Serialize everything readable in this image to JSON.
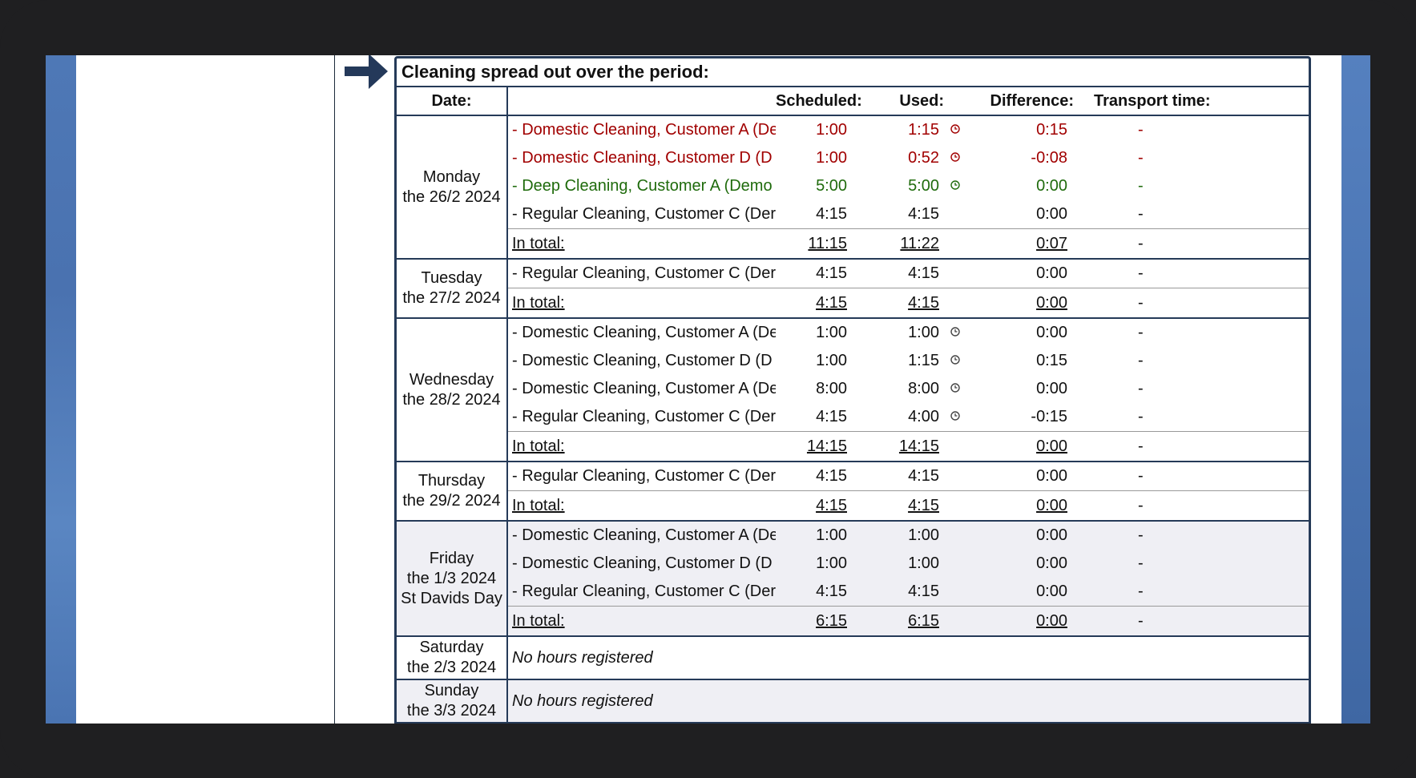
{
  "report": {
    "title": "Cleaning spread out over the period:",
    "headers": {
      "date": "Date:",
      "scheduled": "Scheduled:",
      "used": "Used:",
      "difference": "Difference:",
      "transport": "Transport time:"
    },
    "total_label": "In total:",
    "colors": {
      "red": "#a10000",
      "green": "#1f6b0c",
      "border": "#253a58",
      "shade": "#efeff4"
    },
    "days": [
      {
        "weekday": "Monday",
        "date": "the 26/2 2024",
        "tasks": [
          {
            "name": "Domestic Cleaning, Customer A (De",
            "scheduled": "1:00",
            "used": "1:15",
            "difference": "0:15",
            "transport": "-",
            "status": "red",
            "clock": true
          },
          {
            "name": "Domestic Cleaning, Customer D (D",
            "scheduled": "1:00",
            "used": "0:52",
            "difference": "-0:08",
            "transport": "-",
            "status": "red",
            "clock": true
          },
          {
            "name": "Deep Cleaning, Customer A (Demo",
            "scheduled": "5:00",
            "used": "5:00",
            "difference": "0:00",
            "transport": "-",
            "status": "green",
            "clock": true
          },
          {
            "name": "Regular Cleaning, Customer C (Der",
            "scheduled": "4:15",
            "used": "4:15",
            "difference": "0:00",
            "transport": "-",
            "status": "normal",
            "clock": false
          }
        ],
        "total": {
          "scheduled": "11:15",
          "used": "11:22",
          "difference": "0:07",
          "transport": "-"
        }
      },
      {
        "weekday": "Tuesday",
        "date": "the 27/2 2024",
        "tasks": [
          {
            "name": "Regular Cleaning, Customer C (Der",
            "scheduled": "4:15",
            "used": "4:15",
            "difference": "0:00",
            "transport": "-",
            "status": "normal",
            "clock": false
          }
        ],
        "total": {
          "scheduled": "4:15",
          "used": "4:15",
          "difference": "0:00",
          "transport": "-"
        }
      },
      {
        "weekday": "Wednesday",
        "date": "the 28/2 2024",
        "tasks": [
          {
            "name": "Domestic Cleaning, Customer A (De",
            "scheduled": "1:00",
            "used": "1:00",
            "difference": "0:00",
            "transport": "-",
            "status": "normal",
            "clock": true
          },
          {
            "name": "Domestic Cleaning, Customer D (D",
            "scheduled": "1:00",
            "used": "1:15",
            "difference": "0:15",
            "transport": "-",
            "status": "normal",
            "clock": true
          },
          {
            "name": "Domestic Cleaning, Customer A (De",
            "scheduled": "8:00",
            "used": "8:00",
            "difference": "0:00",
            "transport": "-",
            "status": "normal",
            "clock": true
          },
          {
            "name": "Regular Cleaning, Customer C (Der",
            "scheduled": "4:15",
            "used": "4:00",
            "difference": "-0:15",
            "transport": "-",
            "status": "normal",
            "clock": true
          }
        ],
        "total": {
          "scheduled": "14:15",
          "used": "14:15",
          "difference": "0:00",
          "transport": "-"
        }
      },
      {
        "weekday": "Thursday",
        "date": "the 29/2 2024",
        "tasks": [
          {
            "name": "Regular Cleaning, Customer C (Der",
            "scheduled": "4:15",
            "used": "4:15",
            "difference": "0:00",
            "transport": "-",
            "status": "normal",
            "clock": false
          }
        ],
        "total": {
          "scheduled": "4:15",
          "used": "4:15",
          "difference": "0:00",
          "transport": "-"
        }
      },
      {
        "weekday": "Friday",
        "date": "the 1/3 2024",
        "holiday": "St Davids Day",
        "shaded": true,
        "tasks": [
          {
            "name": "Domestic Cleaning, Customer A (De",
            "scheduled": "1:00",
            "used": "1:00",
            "difference": "0:00",
            "transport": "-",
            "status": "normal",
            "clock": false
          },
          {
            "name": "Domestic Cleaning, Customer D (D",
            "scheduled": "1:00",
            "used": "1:00",
            "difference": "0:00",
            "transport": "-",
            "status": "normal",
            "clock": false
          },
          {
            "name": "Regular Cleaning, Customer C (Der",
            "scheduled": "4:15",
            "used": "4:15",
            "difference": "0:00",
            "transport": "-",
            "status": "normal",
            "clock": false
          }
        ],
        "total": {
          "scheduled": "6:15",
          "used": "6:15",
          "difference": "0:00",
          "transport": "-"
        }
      },
      {
        "weekday": "Saturday",
        "date": "the 2/3 2024",
        "note": "No hours registered"
      },
      {
        "weekday": "Sunday",
        "date": "the 3/3 2024",
        "note": "No hours registered",
        "shaded": true
      }
    ]
  }
}
